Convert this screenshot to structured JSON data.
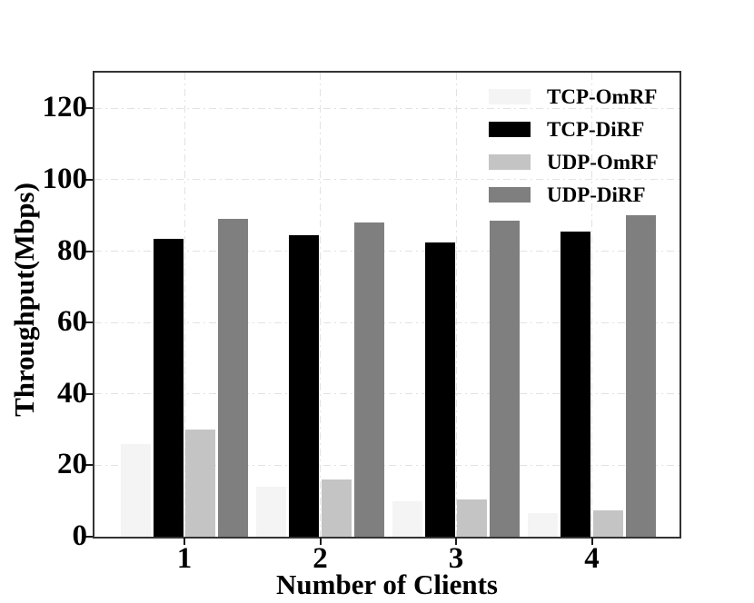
{
  "chart_data": {
    "type": "bar",
    "title": "",
    "xlabel": "Number of Clients",
    "ylabel": "Throughput(Mbps)",
    "categories": [
      "1",
      "2",
      "3",
      "4"
    ],
    "series": [
      {
        "name": "TCP-OmRF",
        "color": "#f4f4f4",
        "values": [
          26,
          14,
          10,
          6.5
        ]
      },
      {
        "name": "TCP-DiRF",
        "color": "#000000",
        "values": [
          83.5,
          84.5,
          82.5,
          85.5
        ]
      },
      {
        "name": "UDP-OmRF",
        "color": "#c4c4c4",
        "values": [
          30,
          16,
          10.5,
          7.5
        ]
      },
      {
        "name": "UDP-DiRF",
        "color": "#7f7f7f",
        "values": [
          89,
          88,
          88.5,
          90
        ]
      }
    ],
    "ylim": [
      0,
      130
    ],
    "yticks": [
      0,
      20,
      40,
      60,
      80,
      100,
      120
    ],
    "grid": {
      "horizontal": true,
      "vertical": true,
      "style": "dash-dot",
      "color": "#e2e2e2"
    },
    "legend": {
      "position": "upper-right"
    },
    "axis_color": "#333333",
    "text_color": "#000000",
    "background": "#ffffff"
  }
}
